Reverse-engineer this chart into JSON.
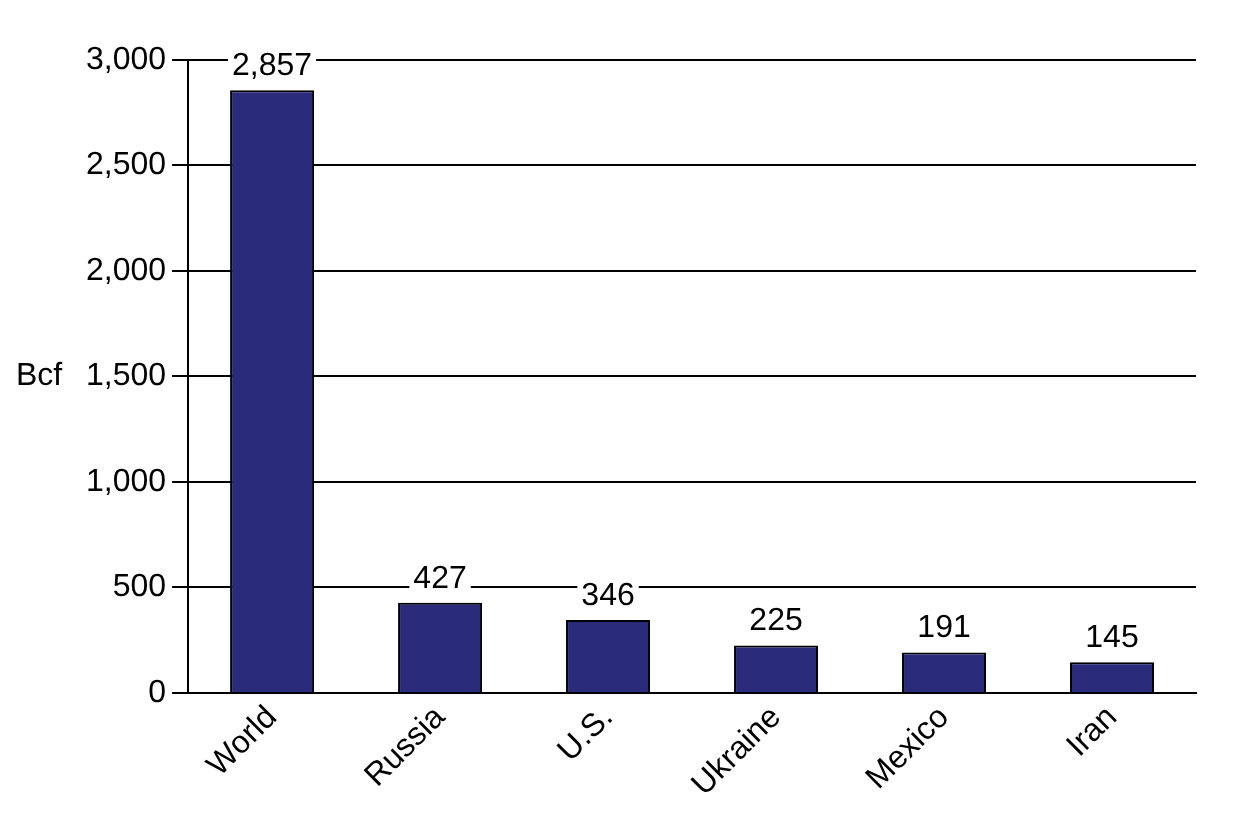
{
  "chart_data": {
    "type": "bar",
    "ylabel": "Bcf",
    "categories": [
      "World",
      "Russia",
      "U.S.",
      "Ukraine",
      "Mexico",
      "Iran"
    ],
    "values": [
      2857,
      427,
      346,
      225,
      191,
      145
    ],
    "color": "#2b2b7c",
    "value_labels": [
      "2,857",
      "427",
      "346",
      "225",
      "191",
      "145"
    ],
    "ylim": [
      0,
      3000
    ],
    "yticks": [
      {
        "value": 0,
        "label": "0"
      },
      {
        "value": 500,
        "label": "500"
      },
      {
        "value": 1000,
        "label": "1,000"
      },
      {
        "value": 1500,
        "label": "1,500"
      },
      {
        "value": 2000,
        "label": "2,000"
      },
      {
        "value": 2500,
        "label": "2,500"
      },
      {
        "value": 3000,
        "label": "3,000"
      }
    ],
    "grid": "y"
  }
}
